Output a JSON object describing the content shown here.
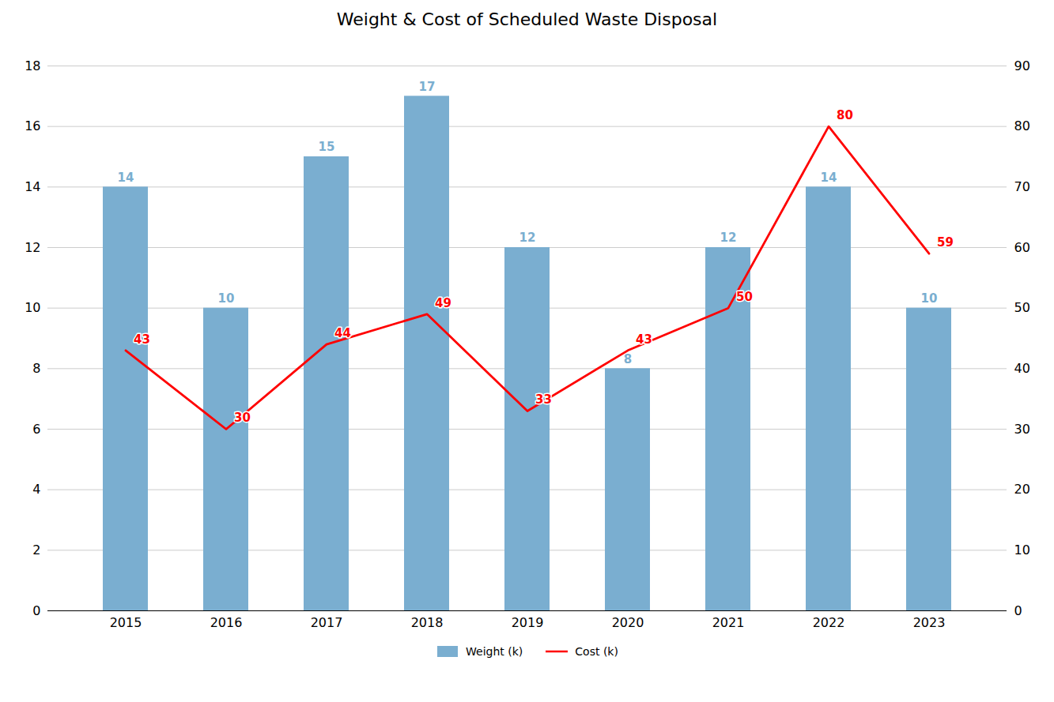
{
  "chart_data": {
    "type": "bar",
    "title": "Weight & Cost of Scheduled Waste Disposal",
    "categories": [
      "2015",
      "2016",
      "2017",
      "2018",
      "2019",
      "2020",
      "2021",
      "2022",
      "2023"
    ],
    "series": [
      {
        "name": "Weight (k)",
        "type": "bar",
        "color": "#7aaed0",
        "values": [
          14,
          10,
          15,
          17,
          12,
          8,
          12,
          14,
          10
        ]
      },
      {
        "name": "Cost (k)",
        "type": "line",
        "color": "#ff0000",
        "axis": "y2",
        "values": [
          43,
          30,
          44,
          49,
          33,
          43,
          50,
          80,
          59
        ]
      }
    ],
    "ylim": [
      0,
      18
    ],
    "yticks": [
      0,
      2,
      4,
      6,
      8,
      10,
      12,
      14,
      16,
      18
    ],
    "y2lim": [
      0,
      90
    ],
    "y2ticks": [
      0,
      10,
      20,
      30,
      40,
      50,
      60,
      70,
      80,
      90
    ],
    "grid": true,
    "legend": "bottom",
    "data_labels": true
  }
}
